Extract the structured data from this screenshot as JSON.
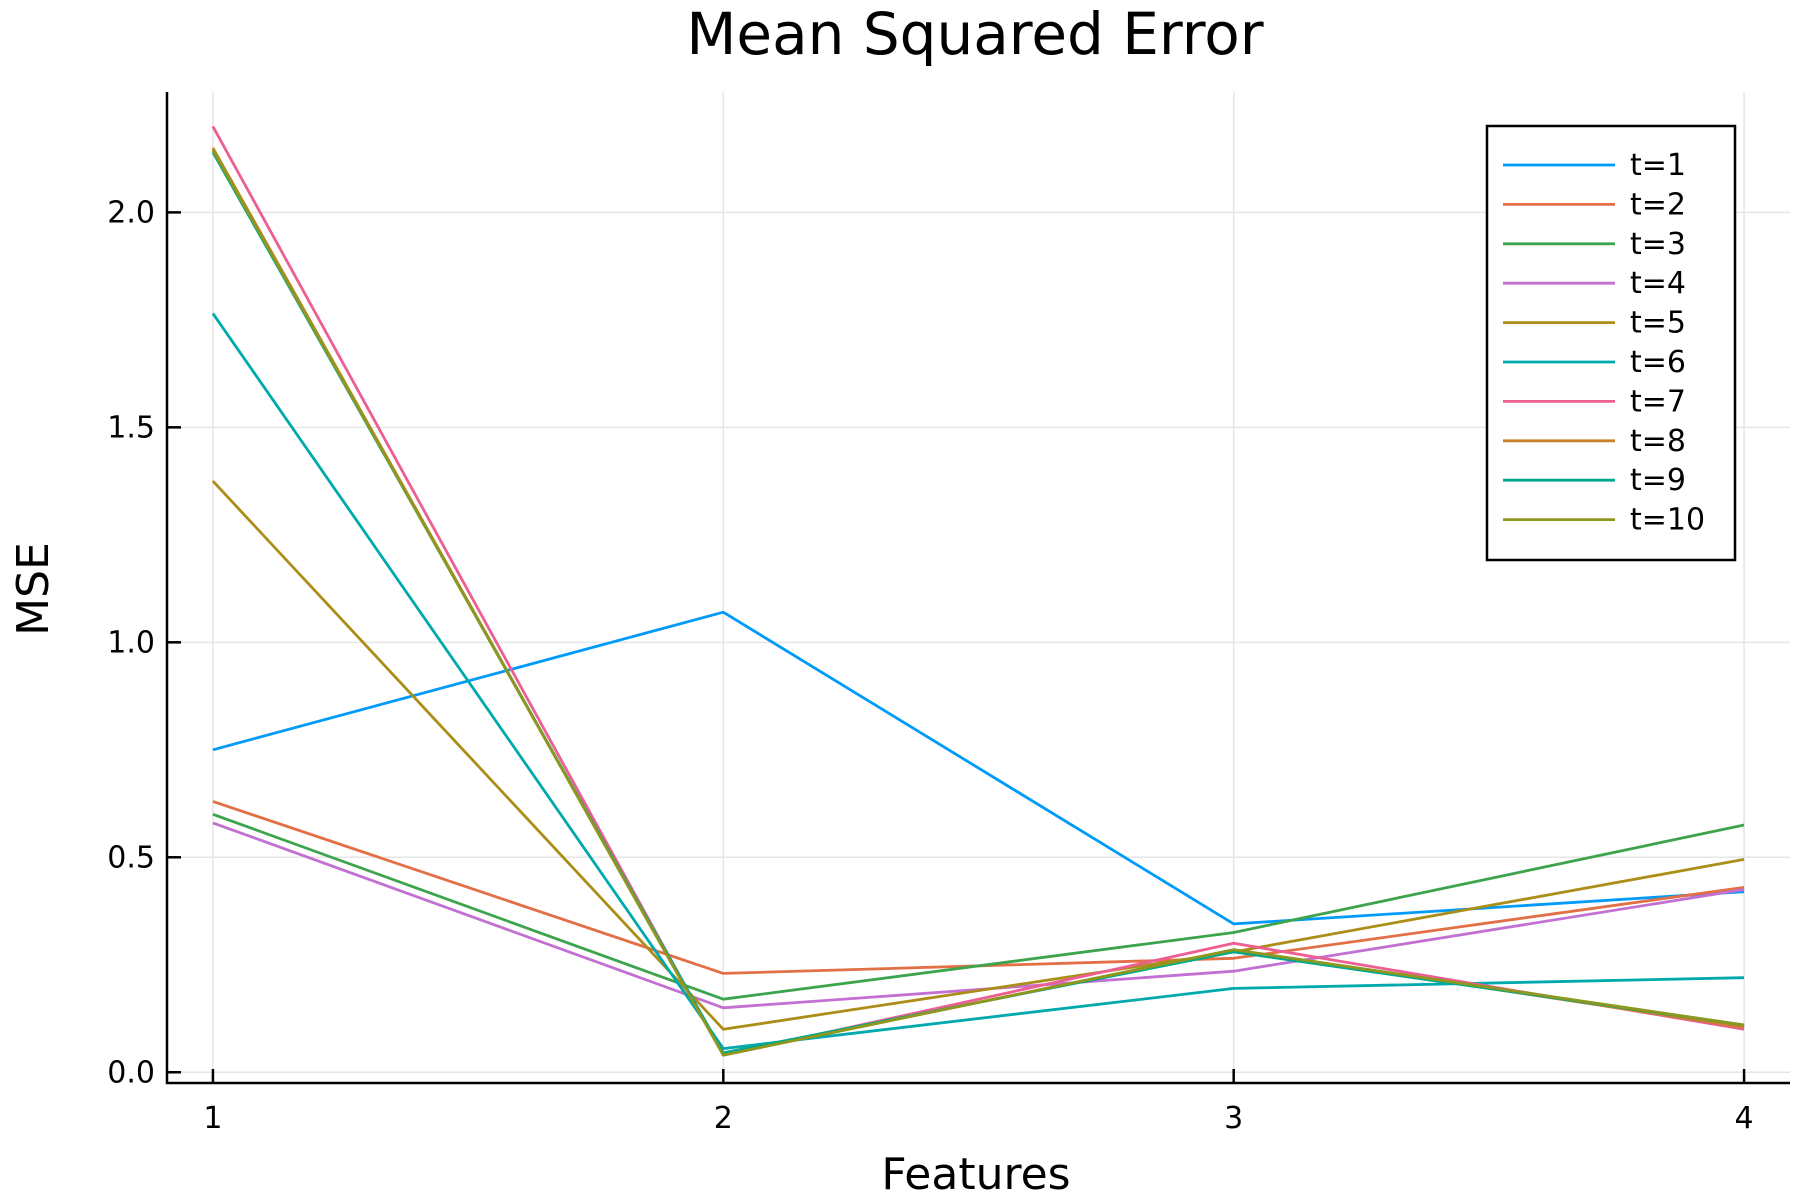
{
  "chart_data": {
    "type": "line",
    "title": "Mean Squared Error",
    "xlabel": "Features",
    "ylabel": "MSE",
    "x": [
      1,
      2,
      3,
      4
    ],
    "xlim": [
      0.91,
      4.09
    ],
    "ylim": [
      -0.025,
      2.28
    ],
    "xticks": [
      1,
      2,
      3,
      4
    ],
    "xtick_labels": [
      "1",
      "2",
      "3",
      "4"
    ],
    "yticks": [
      0.0,
      0.5,
      1.0,
      1.5,
      2.0
    ],
    "ytick_labels": [
      "0.0",
      "0.5",
      "1.0",
      "1.5",
      "2.0"
    ],
    "grid": true,
    "legend_position": "top-right",
    "series": [
      {
        "name": "t=1",
        "color": "#009af9",
        "values": [
          0.75,
          1.07,
          0.345,
          0.42
        ]
      },
      {
        "name": "t=2",
        "color": "#e26f46",
        "values": [
          0.63,
          0.23,
          0.265,
          0.43
        ]
      },
      {
        "name": "t=3",
        "color": "#3da44d",
        "values": [
          0.6,
          0.17,
          0.325,
          0.575
        ]
      },
      {
        "name": "t=4",
        "color": "#c271d2",
        "values": [
          0.58,
          0.15,
          0.235,
          0.425
        ]
      },
      {
        "name": "t=5",
        "color": "#ac8d18",
        "values": [
          1.375,
          0.1,
          0.28,
          0.495
        ]
      },
      {
        "name": "t=6",
        "color": "#00a9ad",
        "values": [
          1.765,
          0.055,
          0.195,
          0.22
        ]
      },
      {
        "name": "t=7",
        "color": "#ed5e93",
        "values": [
          2.2,
          0.04,
          0.3,
          0.1
        ]
      },
      {
        "name": "t=8",
        "color": "#c68225",
        "values": [
          2.15,
          0.04,
          0.285,
          0.105
        ]
      },
      {
        "name": "t=9",
        "color": "#00a98d",
        "values": [
          2.14,
          0.045,
          0.28,
          0.11
        ]
      },
      {
        "name": "t=10",
        "color": "#8e971e",
        "values": [
          2.145,
          0.04,
          0.285,
          0.11
        ]
      }
    ]
  }
}
